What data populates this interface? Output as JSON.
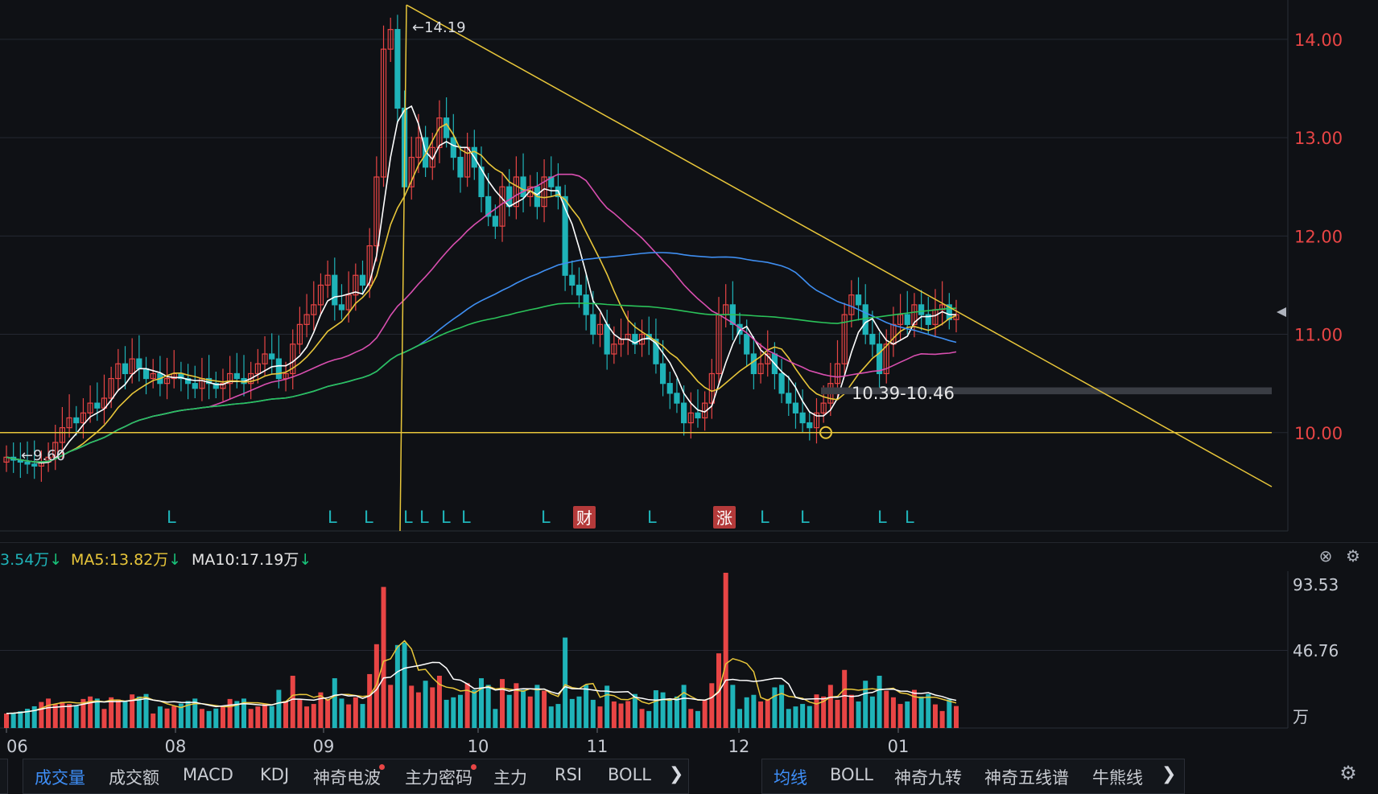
{
  "chart_data": {
    "type": "candlestick",
    "price_axis": {
      "ticks": [
        "14.00",
        "13.00",
        "12.00",
        "11.00",
        "10.00"
      ],
      "range": [
        9.0,
        14.4
      ]
    },
    "month_labels": [
      "06",
      "08",
      "09",
      "10",
      "11",
      "12",
      "01"
    ],
    "annotations": {
      "high_label": "←14.19",
      "low_label": "←9.60",
      "zone_label": "10.39-10.46",
      "support_level": 10.0,
      "zone": [
        10.39,
        10.46
      ]
    },
    "markers": {
      "l_label": "L",
      "cai_label": "财",
      "zhang_label": "涨"
    },
    "closes": [
      9.75,
      9.72,
      9.7,
      9.68,
      9.66,
      9.7,
      9.75,
      9.9,
      10.05,
      10.15,
      10.1,
      10.2,
      10.3,
      10.25,
      10.35,
      10.55,
      10.7,
      10.6,
      10.75,
      10.65,
      10.55,
      10.6,
      10.5,
      10.55,
      10.6,
      10.55,
      10.5,
      10.45,
      10.55,
      10.5,
      10.45,
      10.5,
      10.6,
      10.55,
      10.5,
      10.6,
      10.7,
      10.8,
      10.75,
      10.55,
      10.6,
      10.9,
      11.1,
      11.2,
      11.3,
      11.5,
      11.6,
      11.3,
      11.25,
      11.4,
      11.6,
      11.5,
      11.9,
      12.6,
      13.9,
      14.1,
      13.3,
      12.5,
      12.8,
      13.0,
      12.7,
      12.9,
      13.2,
      13.0,
      12.8,
      12.6,
      12.9,
      12.7,
      12.4,
      12.2,
      12.1,
      12.5,
      12.3,
      12.6,
      12.4,
      12.5,
      12.3,
      12.6,
      12.5,
      12.4,
      11.6,
      11.5,
      11.4,
      11.2,
      11.0,
      11.1,
      10.8,
      10.9,
      10.95,
      11.0,
      10.9,
      11.0,
      10.95,
      10.7,
      10.5,
      10.4,
      10.3,
      10.1,
      10.2,
      10.15,
      10.3,
      10.6,
      11.2,
      11.3,
      11.1,
      11.0,
      10.8,
      10.6,
      10.7,
      10.8,
      10.6,
      10.4,
      10.3,
      10.2,
      10.1,
      10.05,
      10.2,
      10.3,
      10.5,
      10.7,
      11.2,
      11.4,
      11.3,
      11.0,
      10.9,
      10.6,
      10.9,
      11.1,
      11.2,
      11.1,
      11.3,
      11.2,
      11.1,
      11.25,
      11.3,
      11.15,
      11.2
    ],
    "ma_values": {
      "white": [
        10.6,
        10.9,
        11.2
      ],
      "yellow": [
        10.8,
        11.0,
        11.2
      ]
    },
    "ma_lines": [
      {
        "color": "#ffffff"
      },
      {
        "color": "#e8c63a"
      },
      {
        "color": "#d94fb0"
      },
      {
        "color": "#3f8ff2"
      },
      {
        "color": "#2bc35a"
      }
    ],
    "volume_axis": {
      "ticks": [
        "93.53",
        "46.76"
      ],
      "unit": "万",
      "max": 93.53
    }
  },
  "volume_header": {
    "ma_prev": "3.54万",
    "ma5": "MA5:13.82万",
    "ma10": "MA10:17.19万",
    "down_arrow": "↓"
  },
  "bottom_tabs_left": [
    "成交量",
    "成交额",
    "MACD",
    "KDJ",
    "神奇电波",
    "主力密码",
    "主力",
    "RSI",
    "BOLL"
  ],
  "bottom_tabs_right": [
    "均线",
    "BOLL",
    "神奇九转",
    "神奇五线谱",
    "牛熊线"
  ],
  "colors": {
    "up": "#e84545",
    "down": "#1fb3b8",
    "axis_text": "#e84545"
  }
}
